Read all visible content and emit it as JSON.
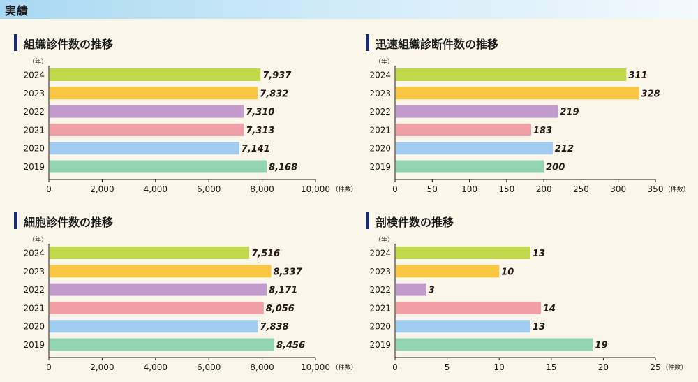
{
  "page": {
    "title": "実績"
  },
  "colors": {
    "2024": "#c2d94b",
    "2023": "#f9c642",
    "2022": "#c39acc",
    "2021": "#ef9ea6",
    "2020": "#a2cbf0",
    "2019": "#92d4b2",
    "accent": "#1d2a6b"
  },
  "chart_data": [
    {
      "type": "bar",
      "title": "組織診件数の推移",
      "year_label": "（年）",
      "unit_label": "（件数）",
      "categories": [
        "2024",
        "2023",
        "2022",
        "2021",
        "2020",
        "2019"
      ],
      "values": [
        7937,
        7832,
        7310,
        7313,
        7141,
        8168
      ],
      "value_labels": [
        "7,937",
        "7,832",
        "7,310",
        "7,313",
        "7,141",
        "8,168"
      ],
      "xlim": [
        0,
        10000
      ],
      "ticks": [
        0,
        2000,
        4000,
        6000,
        8000,
        10000
      ],
      "tick_labels": [
        "0",
        "2,000",
        "4,000",
        "6,000",
        "8,000",
        "10,000"
      ]
    },
    {
      "type": "bar",
      "title": "迅速組織診断件数の推移",
      "year_label": "（年）",
      "unit_label": "（件数）",
      "categories": [
        "2024",
        "2023",
        "2022",
        "2021",
        "2020",
        "2019"
      ],
      "values": [
        311,
        328,
        219,
        183,
        212,
        200
      ],
      "value_labels": [
        "311",
        "328",
        "219",
        "183",
        "212",
        "200"
      ],
      "xlim": [
        0,
        350
      ],
      "ticks": [
        0,
        50,
        100,
        150,
        200,
        250,
        300,
        350
      ],
      "tick_labels": [
        "0",
        "50",
        "100",
        "150",
        "200",
        "250",
        "300",
        "350"
      ]
    },
    {
      "type": "bar",
      "title": "細胞診件数の推移",
      "year_label": "（年）",
      "unit_label": "（件数）",
      "categories": [
        "2024",
        "2023",
        "2022",
        "2021",
        "2020",
        "2019"
      ],
      "values": [
        7516,
        8337,
        8171,
        8056,
        7838,
        8456
      ],
      "value_labels": [
        "7,516",
        "8,337",
        "8,171",
        "8,056",
        "7,838",
        "8,456"
      ],
      "xlim": [
        0,
        10000
      ],
      "ticks": [
        0,
        2000,
        4000,
        6000,
        8000,
        10000
      ],
      "tick_labels": [
        "0",
        "2,000",
        "4,000",
        "6,000",
        "8,000",
        "10,000"
      ]
    },
    {
      "type": "bar",
      "title": "剖検件数の推移",
      "year_label": "（年）",
      "unit_label": "（件数）",
      "categories": [
        "2024",
        "2023",
        "2022",
        "2021",
        "2020",
        "2019"
      ],
      "values": [
        13,
        10,
        3,
        14,
        13,
        19
      ],
      "value_labels": [
        "13",
        "10",
        "3",
        "14",
        "13",
        "19"
      ],
      "xlim": [
        0,
        25
      ],
      "ticks": [
        0,
        5,
        10,
        15,
        20,
        25
      ],
      "tick_labels": [
        "0",
        "5",
        "10",
        "15",
        "20",
        "25"
      ]
    }
  ]
}
